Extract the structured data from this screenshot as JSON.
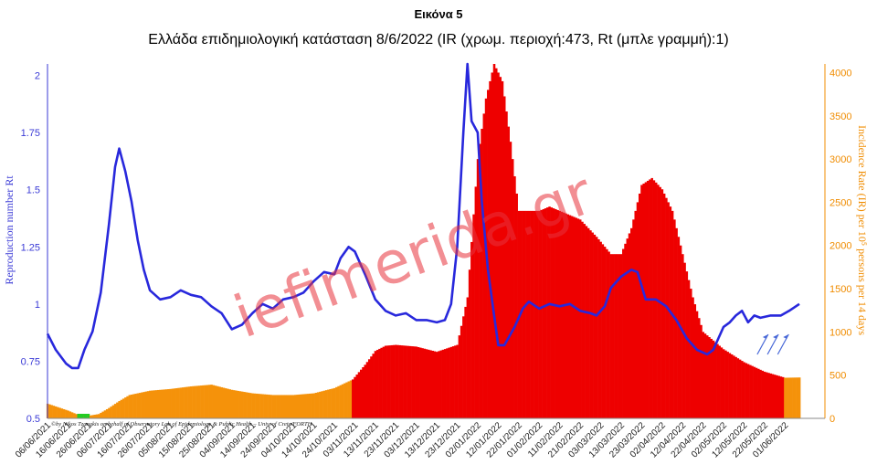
{
  "figure_label": "Εικόνα 5",
  "watermark": "iefimerida.gr",
  "credit": "©by Nikos Tzanakis on behalf of Observatory Lab of Epidemiology & Public Health – Univ. of Crete/FORTH",
  "colors": {
    "rt_line": "#2828dc",
    "ir_orange": "#f5920a",
    "ir_red": "#ee0000",
    "ir_green": "#22cc22",
    "axis_left": "#3a3ad6",
    "axis_right": "#f08c00"
  },
  "chart_data": {
    "type": "bar",
    "title": "Ελλάδα επιδημιολογική κατάσταση 8/6/2022 (IR (χρωμ. περιοχή:473, Rt (μπλε γραμμή):1)",
    "xlabel": "",
    "ylabel_left": "Reproduction number Rt",
    "ylabel_right": "Incidence Rate (IR) per 10⁵ persons per 14 days",
    "y_left_ticks": [
      "0.5",
      "0.75",
      "1",
      "1.25",
      "1.5",
      "1.75",
      "2"
    ],
    "y_left_range": [
      0.5,
      2.05
    ],
    "y_right_ticks": [
      "0",
      "500",
      "1000",
      "1500",
      "2000",
      "2500",
      "3000",
      "3500",
      "4000"
    ],
    "y_right_range": [
      0,
      4100
    ],
    "x_tick_labels": [
      "06/06/2021",
      "16/06/2021",
      "26/06/2021",
      "06/07/2021",
      "16/07/2021",
      "26/07/2021",
      "05/08/2021",
      "15/08/2021",
      "25/08/2021",
      "04/09/2021",
      "14/09/2021",
      "24/09/2021",
      "04/10/2021",
      "14/10/2021",
      "24/10/2021",
      "03/11/2021",
      "13/11/2021",
      "23/11/2021",
      "03/12/2021",
      "13/12/2021",
      "23/12/2021",
      "02/01/2022",
      "12/01/2022",
      "22/01/2022",
      "01/02/2022",
      "11/02/2022",
      "21/02/2022",
      "03/03/2022",
      "13/03/2022",
      "23/03/2022",
      "02/04/2022",
      "12/04/2022",
      "22/04/2022",
      "02/05/2022",
      "12/05/2022",
      "22/05/2022",
      "01/06/2022"
    ],
    "x_range": [
      "06/06/2021",
      "08/06/2022"
    ],
    "grid": false,
    "legend": "none",
    "series": [
      {
        "name": "Incidence Rate (IR)",
        "axis": "right",
        "kind": "bar",
        "points": [
          [
            "06/06/2021",
            170
          ],
          [
            "16/06/2021",
            90
          ],
          [
            "21/06/2021",
            40
          ],
          [
            "26/06/2021",
            30
          ],
          [
            "01/07/2021",
            50
          ],
          [
            "06/07/2021",
            120
          ],
          [
            "11/07/2021",
            200
          ],
          [
            "16/07/2021",
            270
          ],
          [
            "26/07/2021",
            320
          ],
          [
            "05/08/2021",
            340
          ],
          [
            "15/08/2021",
            370
          ],
          [
            "25/08/2021",
            390
          ],
          [
            "04/09/2021",
            330
          ],
          [
            "14/09/2021",
            290
          ],
          [
            "24/09/2021",
            270
          ],
          [
            "04/10/2021",
            270
          ],
          [
            "14/10/2021",
            290
          ],
          [
            "24/10/2021",
            350
          ],
          [
            "02/11/2021",
            450
          ],
          [
            "08/11/2021",
            620
          ],
          [
            "13/11/2021",
            780
          ],
          [
            "18/11/2021",
            840
          ],
          [
            "23/11/2021",
            850
          ],
          [
            "03/12/2021",
            830
          ],
          [
            "13/12/2021",
            770
          ],
          [
            "23/12/2021",
            850
          ],
          [
            "28/12/2021",
            1400
          ],
          [
            "02/01/2022",
            3000
          ],
          [
            "06/01/2022",
            3700
          ],
          [
            "10/01/2022",
            4100
          ],
          [
            "14/01/2022",
            3900
          ],
          [
            "18/01/2022",
            3200
          ],
          [
            "22/01/2022",
            2400
          ],
          [
            "01/02/2022",
            2400
          ],
          [
            "06/02/2022",
            2450
          ],
          [
            "11/02/2022",
            2400
          ],
          [
            "21/02/2022",
            2300
          ],
          [
            "01/03/2022",
            2100
          ],
          [
            "08/03/2022",
            1900
          ],
          [
            "13/03/2022",
            1900
          ],
          [
            "18/03/2022",
            2200
          ],
          [
            "23/03/2022",
            2700
          ],
          [
            "28/03/2022",
            2780
          ],
          [
            "02/04/2022",
            2650
          ],
          [
            "07/04/2022",
            2400
          ],
          [
            "12/04/2022",
            1900
          ],
          [
            "17/04/2022",
            1400
          ],
          [
            "22/04/2022",
            1000
          ],
          [
            "02/05/2022",
            800
          ],
          [
            "12/05/2022",
            650
          ],
          [
            "22/05/2022",
            540
          ],
          [
            "01/06/2022",
            470
          ],
          [
            "08/06/2022",
            473
          ]
        ]
      },
      {
        "name": "Rt",
        "axis": "left",
        "kind": "line",
        "points": [
          [
            "06/06/2021",
            0.87
          ],
          [
            "10/06/2021",
            0.8
          ],
          [
            "15/06/2021",
            0.74
          ],
          [
            "18/06/2021",
            0.72
          ],
          [
            "21/06/2021",
            0.72
          ],
          [
            "24/06/2021",
            0.8
          ],
          [
            "28/06/2021",
            0.88
          ],
          [
            "02/07/2021",
            1.05
          ],
          [
            "06/07/2021",
            1.35
          ],
          [
            "09/07/2021",
            1.6
          ],
          [
            "11/07/2021",
            1.68
          ],
          [
            "14/07/2021",
            1.58
          ],
          [
            "17/07/2021",
            1.45
          ],
          [
            "20/07/2021",
            1.28
          ],
          [
            "23/07/2021",
            1.15
          ],
          [
            "26/07/2021",
            1.06
          ],
          [
            "31/07/2021",
            1.02
          ],
          [
            "05/08/2021",
            1.03
          ],
          [
            "10/08/2021",
            1.06
          ],
          [
            "15/08/2021",
            1.04
          ],
          [
            "20/08/2021",
            1.03
          ],
          [
            "25/08/2021",
            0.99
          ],
          [
            "30/08/2021",
            0.96
          ],
          [
            "04/09/2021",
            0.89
          ],
          [
            "09/09/2021",
            0.91
          ],
          [
            "14/09/2021",
            0.96
          ],
          [
            "19/09/2021",
            1.0
          ],
          [
            "24/09/2021",
            0.98
          ],
          [
            "29/09/2021",
            1.02
          ],
          [
            "04/10/2021",
            1.03
          ],
          [
            "09/10/2021",
            1.05
          ],
          [
            "14/10/2021",
            1.1
          ],
          [
            "19/10/2021",
            1.14
          ],
          [
            "24/10/2021",
            1.13
          ],
          [
            "27/10/2021",
            1.2
          ],
          [
            "31/10/2021",
            1.25
          ],
          [
            "03/11/2021",
            1.23
          ],
          [
            "08/11/2021",
            1.13
          ],
          [
            "13/11/2021",
            1.02
          ],
          [
            "18/11/2021",
            0.97
          ],
          [
            "23/11/2021",
            0.95
          ],
          [
            "28/11/2021",
            0.96
          ],
          [
            "03/12/2021",
            0.93
          ],
          [
            "08/12/2021",
            0.93
          ],
          [
            "13/12/2021",
            0.92
          ],
          [
            "17/12/2021",
            0.93
          ],
          [
            "20/12/2021",
            1.0
          ],
          [
            "23/12/2021",
            1.25
          ],
          [
            "26/12/2021",
            1.75
          ],
          [
            "28/12/2021",
            2.05
          ],
          [
            "30/12/2021",
            1.8
          ],
          [
            "02/01/2022",
            1.75
          ],
          [
            "04/01/2022",
            1.45
          ],
          [
            "07/01/2022",
            1.15
          ],
          [
            "10/01/2022",
            0.95
          ],
          [
            "12/01/2022",
            0.82
          ],
          [
            "15/01/2022",
            0.82
          ],
          [
            "20/01/2022",
            0.9
          ],
          [
            "24/01/2022",
            0.98
          ],
          [
            "27/01/2022",
            1.01
          ],
          [
            "01/02/2022",
            0.98
          ],
          [
            "06/02/2022",
            1.0
          ],
          [
            "11/02/2022",
            0.99
          ],
          [
            "16/02/2022",
            1.0
          ],
          [
            "21/02/2022",
            0.97
          ],
          [
            "26/02/2022",
            0.96
          ],
          [
            "01/03/2022",
            0.95
          ],
          [
            "05/03/2022",
            0.99
          ],
          [
            "08/03/2022",
            1.07
          ],
          [
            "13/03/2022",
            1.12
          ],
          [
            "18/03/2022",
            1.15
          ],
          [
            "21/03/2022",
            1.14
          ],
          [
            "25/03/2022",
            1.02
          ],
          [
            "30/03/2022",
            1.02
          ],
          [
            "04/04/2022",
            0.99
          ],
          [
            "09/04/2022",
            0.93
          ],
          [
            "14/04/2022",
            0.85
          ],
          [
            "19/04/2022",
            0.8
          ],
          [
            "24/04/2022",
            0.78
          ],
          [
            "27/04/2022",
            0.8
          ],
          [
            "02/05/2022",
            0.9
          ],
          [
            "05/05/2022",
            0.92
          ],
          [
            "08/05/2022",
            0.95
          ],
          [
            "11/05/2022",
            0.97
          ],
          [
            "14/05/2022",
            0.92
          ],
          [
            "17/05/2022",
            0.95
          ],
          [
            "20/05/2022",
            0.94
          ],
          [
            "25/05/2022",
            0.95
          ],
          [
            "30/05/2022",
            0.95
          ],
          [
            "03/06/2022",
            0.97
          ],
          [
            "08/06/2022",
            1.0
          ]
        ]
      }
    ],
    "annotations": [
      {
        "type": "arrow",
        "at": "22/05/2022"
      },
      {
        "type": "arrow",
        "at": "27/05/2022"
      },
      {
        "type": "arrow",
        "at": "01/06/2022"
      }
    ]
  }
}
